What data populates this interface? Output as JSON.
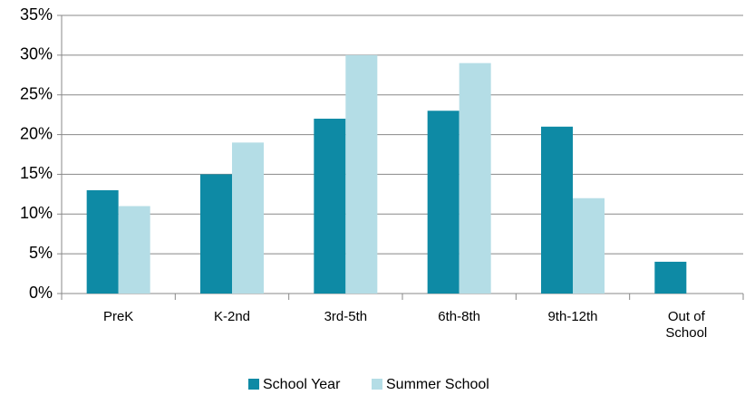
{
  "chart_data": {
    "type": "bar",
    "categories": [
      "PreK",
      "K-2nd",
      "3rd-5th",
      "6th-8th",
      "9th-12th",
      "Out of School"
    ],
    "series": [
      {
        "name": "School Year",
        "color": "#0e8aa5",
        "values": [
          13,
          15,
          22,
          23,
          21,
          4
        ]
      },
      {
        "name": "Summer School",
        "color": "#b4dde6",
        "values": [
          11,
          19,
          30,
          29,
          12,
          0
        ]
      }
    ],
    "ylim": [
      0,
      35
    ],
    "yticks": [
      {
        "value": 0,
        "label": "0%"
      },
      {
        "value": 5,
        "label": "5%"
      },
      {
        "value": 10,
        "label": "10%"
      },
      {
        "value": 15,
        "label": "15%"
      },
      {
        "value": 20,
        "label": "20%"
      },
      {
        "value": 25,
        "label": "25%"
      },
      {
        "value": 30,
        "label": "30%"
      },
      {
        "value": 35,
        "label": "35%"
      }
    ],
    "grid": true,
    "legend": "bottom"
  }
}
